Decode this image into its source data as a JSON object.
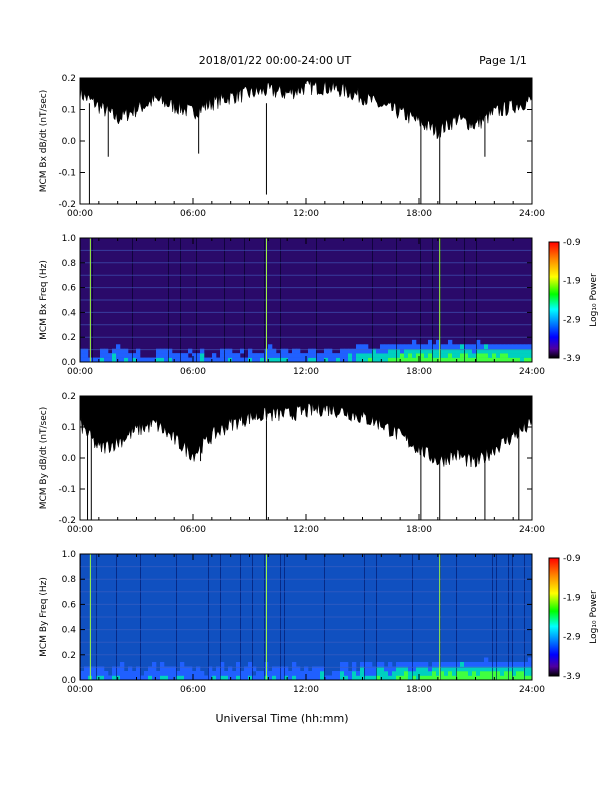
{
  "header": {
    "title": "2018/01/22  00:00-24:00 UT",
    "page": "Page 1/1"
  },
  "footer": {
    "xlabel": "Universal Time (hh:mm)"
  },
  "colorbar": {
    "label": "Log₁₀ Power",
    "ticks": [
      "-0.9",
      "-1.9",
      "-2.9",
      "-3.9"
    ],
    "stops": [
      "#ff0000",
      "#ff8800",
      "#ffff00",
      "#00ff00",
      "#00ffff",
      "#0080ff",
      "#0000ff",
      "#5000a0",
      "#000000"
    ]
  },
  "chart_data": [
    {
      "type": "line",
      "ylabel": "MCM Bx dB/dt (nT/sec)",
      "xlim": [
        0,
        24
      ],
      "ylim": [
        -0.2,
        0.2
      ],
      "x_ticks": [
        "00:00",
        "06:00",
        "12:00",
        "18:00",
        "24:00"
      ],
      "y_ticks": [
        "0.2",
        "0.1",
        "0.0",
        "-0.1",
        "-0.2"
      ],
      "spikes": [
        [
          0.5,
          -0.2
        ],
        [
          1.5,
          -0.05
        ],
        [
          6.3,
          -0.04
        ],
        [
          9.9,
          -0.17
        ],
        [
          18.1,
          -0.2
        ],
        [
          19.1,
          -0.2
        ],
        [
          21.5,
          -0.05
        ]
      ],
      "envelope_top": 0.2,
      "envelope_bottom": [
        0.14,
        0.1,
        0.06,
        0.09,
        0.12,
        0.1,
        0.08,
        0.11,
        0.13,
        0.14,
        0.15,
        0.14,
        0.16,
        0.16,
        0.15,
        0.13,
        0.1,
        0.08,
        0.05,
        0.02,
        0.06,
        0.04,
        0.08,
        0.1,
        0.12
      ]
    },
    {
      "type": "heatmap",
      "ylabel": "MCM Bx Freq (Hz)",
      "xlim": [
        0,
        24
      ],
      "ylim": [
        0,
        1
      ],
      "x_ticks": [
        "00:00",
        "06:00",
        "12:00",
        "18:00",
        "24:00"
      ],
      "y_ticks": [
        "1.0",
        "0.8",
        "0.6",
        "0.4",
        "0.2",
        "0.0"
      ],
      "zlim": [
        -3.9,
        -0.9
      ],
      "background": "#2a0a6a"
    },
    {
      "type": "line",
      "ylabel": "MCM By dB/dt (nT/sec)",
      "xlim": [
        0,
        24
      ],
      "ylim": [
        -0.2,
        0.2
      ],
      "x_ticks": [
        "00:00",
        "06:00",
        "12:00",
        "18:00",
        "24:00"
      ],
      "y_ticks": [
        "0.2",
        "0.1",
        "0.0",
        "-0.1",
        "-0.2"
      ],
      "spikes": [
        [
          0.4,
          -0.2
        ],
        [
          0.6,
          -0.2
        ],
        [
          6.4,
          -0.01
        ],
        [
          9.9,
          -0.2
        ],
        [
          18.1,
          -0.2
        ],
        [
          19.1,
          -0.2
        ],
        [
          21.5,
          -0.2
        ],
        [
          23.3,
          -0.2
        ]
      ],
      "envelope_top": 0.2,
      "envelope_bottom": [
        0.1,
        0.02,
        0.04,
        0.08,
        0.1,
        0.05,
        0.0,
        0.06,
        0.1,
        0.12,
        0.13,
        0.13,
        0.14,
        0.15,
        0.14,
        0.12,
        0.1,
        0.06,
        0.02,
        -0.02,
        0.0,
        -0.03,
        0.02,
        0.06,
        0.1
      ]
    },
    {
      "type": "heatmap",
      "ylabel": "MCM By Freq (Hz)",
      "xlim": [
        0,
        24
      ],
      "ylim": [
        0,
        1
      ],
      "x_ticks": [
        "00:00",
        "06:00",
        "12:00",
        "18:00",
        "24:00"
      ],
      "y_ticks": [
        "1.0",
        "0.8",
        "0.6",
        "0.4",
        "0.2",
        "0.0"
      ],
      "zlim": [
        -3.9,
        -0.9
      ],
      "background": "#1050c0"
    }
  ]
}
